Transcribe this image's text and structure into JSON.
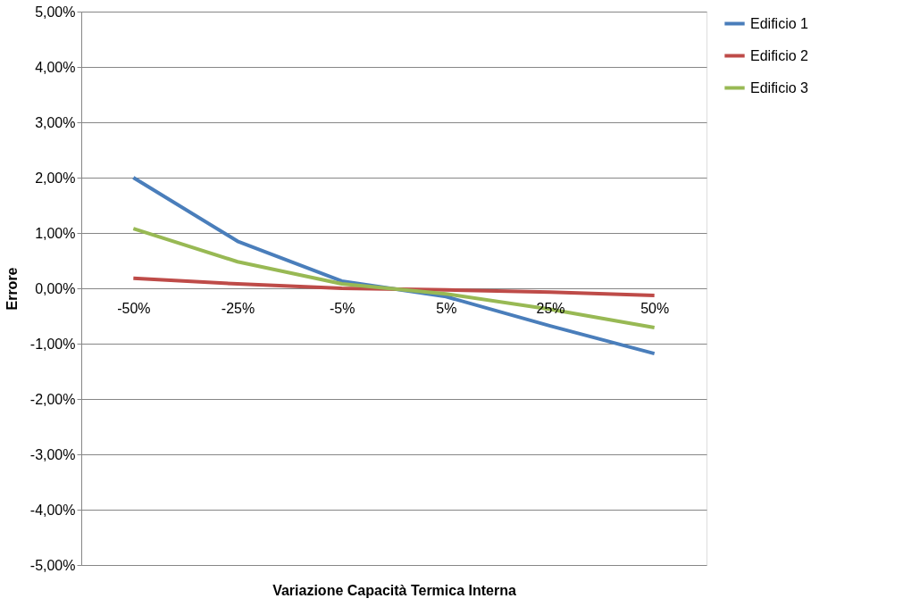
{
  "chart_data": {
    "type": "line",
    "xlabel": "Variazione Capacità Termica Interna",
    "ylabel": "Errore",
    "categories": [
      "-50%",
      "-25%",
      "-5%",
      "5%",
      "25%",
      "50%"
    ],
    "series": [
      {
        "name": "Edificio 1",
        "color": "#4a7ebb",
        "values": [
          2.0,
          0.85,
          0.13,
          -0.15,
          -0.68,
          -1.18
        ]
      },
      {
        "name": "Edificio 2",
        "color": "#be4b48",
        "values": [
          0.18,
          0.08,
          0.0,
          -0.03,
          -0.07,
          -0.13
        ]
      },
      {
        "name": "Edificio 3",
        "color": "#98b954",
        "values": [
          1.08,
          0.48,
          0.08,
          -0.1,
          -0.38,
          -0.71
        ]
      }
    ],
    "ylim": [
      -5,
      5
    ],
    "yticks": [
      {
        "value": -5,
        "label": "-5,00%"
      },
      {
        "value": -4,
        "label": "-4,00%"
      },
      {
        "value": -3,
        "label": "-3,00%"
      },
      {
        "value": -2,
        "label": "-2,00%"
      },
      {
        "value": -1,
        "label": "-1,00%"
      },
      {
        "value": 0,
        "label": "0,00%"
      },
      {
        "value": 1,
        "label": "1,00%"
      },
      {
        "value": 2,
        "label": "2,00%"
      },
      {
        "value": 3,
        "label": "3,00%"
      },
      {
        "value": 4,
        "label": "4,00%"
      },
      {
        "value": 5,
        "label": "5,00%"
      }
    ],
    "grid": "y",
    "legend": "right",
    "marker": "none",
    "line_style": "solid"
  }
}
